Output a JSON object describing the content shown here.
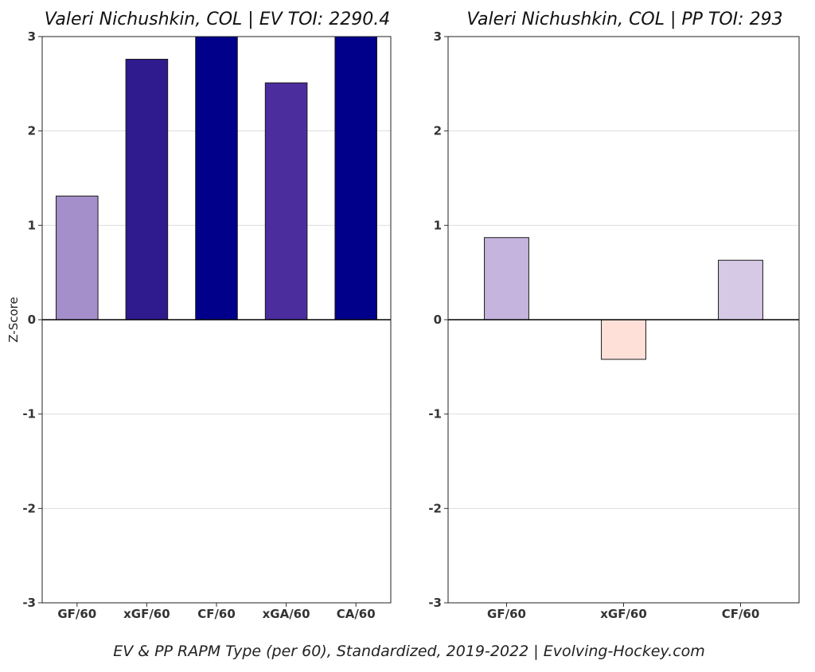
{
  "caption": "EV & PP RAPM Type (per 60), Standardized, 2019-2022    |    Evolving-Hockey.com",
  "chart_data": [
    {
      "type": "bar",
      "title": "Valeri Nichushkin, COL  |  EV TOI: 2290.4",
      "xlabel": "",
      "ylabel": "Z-Score",
      "ylim": [
        -3,
        3
      ],
      "yticks": [
        -3,
        -2,
        -1,
        0,
        1,
        2,
        3
      ],
      "grid": true,
      "categories": [
        "GF/60",
        "xGF/60",
        "CF/60",
        "xGA/60",
        "CA/60"
      ],
      "values": [
        1.31,
        2.76,
        3.0,
        2.51,
        3.0
      ],
      "colors": [
        "#a48fcb",
        "#2f1a8e",
        "#00008b",
        "#4b2d9e",
        "#00008b"
      ]
    },
    {
      "type": "bar",
      "title": "Valeri Nichushkin, COL  |  PP TOI: 293",
      "xlabel": "",
      "ylabel": "",
      "ylim": [
        -3,
        3
      ],
      "yticks": [
        -3,
        -2,
        -1,
        0,
        1,
        2,
        3
      ],
      "grid": true,
      "categories": [
        "GF/60",
        "xGF/60",
        "CF/60"
      ],
      "values": [
        0.87,
        -0.42,
        0.63
      ],
      "colors": [
        "#c4b4de",
        "#ffe0d8",
        "#d6c9e6"
      ]
    }
  ]
}
